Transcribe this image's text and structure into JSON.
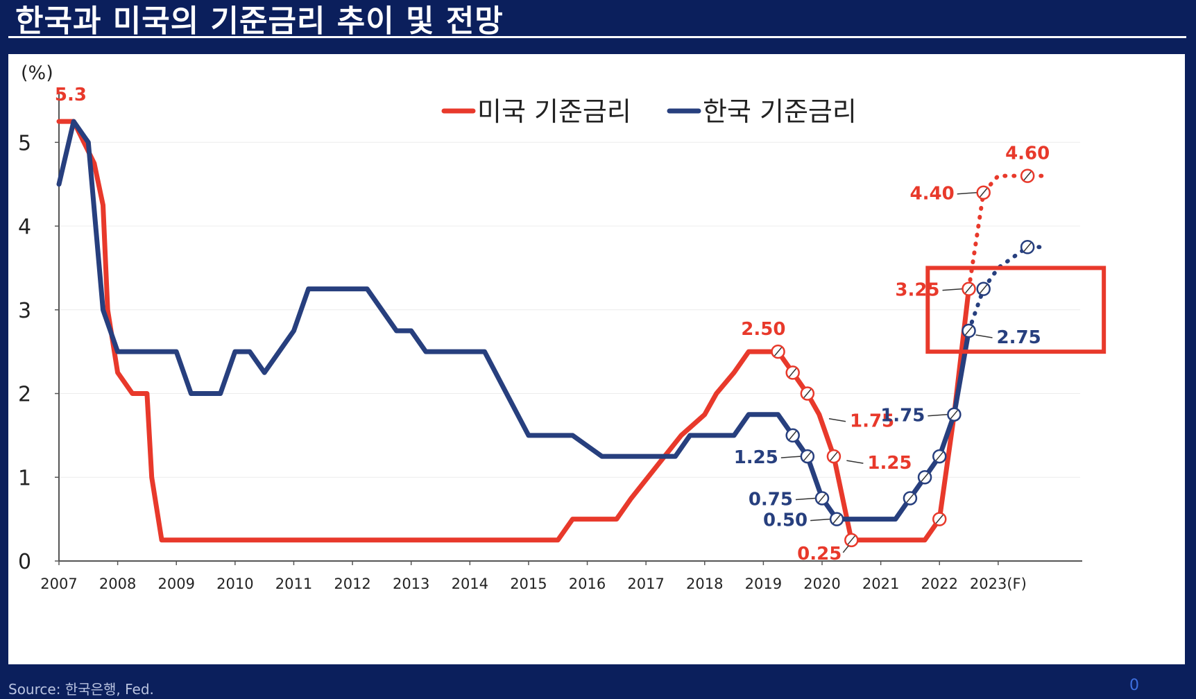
{
  "title": "한국과 미국의 기준금리 추이 및 전망",
  "source": "Source: 한국은행, Fed.",
  "page_number": "0",
  "colors": {
    "us": "#e8392b",
    "korea": "#273f7e",
    "highlight": "#e8392b",
    "background": "#0b1f5c"
  },
  "chart_data": {
    "type": "line",
    "unit_label": "(%)",
    "ylim": [
      0,
      5.4
    ],
    "xlim": [
      2007,
      2023.9
    ],
    "y_ticks": [
      "0",
      "1",
      "2",
      "3",
      "4",
      "5"
    ],
    "x_tick_labels": [
      "2007",
      "2008",
      "2009",
      "2010",
      "2011",
      "2012",
      "2013",
      "2014",
      "2015",
      "2016",
      "2017",
      "2018",
      "2019",
      "2020",
      "2021",
      "2022",
      "2023(F)"
    ],
    "grid": true,
    "legend_placement": "top",
    "series": [
      {
        "name": "미국 기준금리",
        "key": "us",
        "actual": [
          [
            2007.0,
            5.25
          ],
          [
            2007.25,
            5.25
          ],
          [
            2007.6,
            4.75
          ],
          [
            2007.75,
            4.25
          ],
          [
            2007.83,
            3.0
          ],
          [
            2008.0,
            2.25
          ],
          [
            2008.25,
            2.0
          ],
          [
            2008.5,
            2.0
          ],
          [
            2008.58,
            1.0
          ],
          [
            2008.75,
            0.25
          ],
          [
            2015.5,
            0.25
          ],
          [
            2015.75,
            0.5
          ],
          [
            2016.5,
            0.5
          ],
          [
            2016.75,
            0.75
          ],
          [
            2017.6,
            1.5
          ],
          [
            2018.0,
            1.75
          ],
          [
            2018.2,
            2.0
          ],
          [
            2018.5,
            2.25
          ],
          [
            2018.75,
            2.5
          ],
          [
            2019.25,
            2.5
          ],
          [
            2019.5,
            2.25
          ],
          [
            2019.75,
            2.0
          ],
          [
            2019.95,
            1.75
          ],
          [
            2020.2,
            1.25
          ],
          [
            2020.5,
            0.25
          ],
          [
            2021.75,
            0.25
          ],
          [
            2022.0,
            0.5
          ],
          [
            2022.25,
            1.75
          ],
          [
            2022.5,
            3.25
          ]
        ],
        "forecast": [
          [
            2022.5,
            3.25
          ],
          [
            2022.75,
            4.4
          ],
          [
            2023.0,
            4.6
          ],
          [
            2023.75,
            4.6
          ]
        ],
        "markers": [
          2019.25,
          2019.5,
          2019.75,
          2020.2,
          2020.5,
          2022.0,
          2022.5,
          2022.75,
          2023.5
        ],
        "labels": [
          {
            "text": "5.3",
            "x": 2007.2,
            "y": 5.3,
            "pos": "above"
          },
          {
            "text": "2.50",
            "x": 2019.0,
            "y": 2.5,
            "pos": "above"
          },
          {
            "text": "1.75",
            "x": 2020.0,
            "y": 1.75,
            "pos": "right"
          },
          {
            "text": "1.25",
            "x": 2020.3,
            "y": 1.25,
            "pos": "right"
          },
          {
            "text": "0.25",
            "x": 2020.5,
            "y": 0.25,
            "pos": "left-low"
          },
          {
            "text": "3.25",
            "x": 2022.5,
            "y": 3.25,
            "pos": "left"
          },
          {
            "text": "4.40",
            "x": 2022.75,
            "y": 4.4,
            "pos": "left"
          },
          {
            "text": "4.60",
            "x": 2023.5,
            "y": 4.6,
            "pos": "above"
          }
        ]
      },
      {
        "name": "한국 기준금리",
        "key": "korea",
        "actual": [
          [
            2007.0,
            4.5
          ],
          [
            2007.25,
            5.25
          ],
          [
            2007.5,
            5.0
          ],
          [
            2007.75,
            3.0
          ],
          [
            2008.0,
            2.5
          ],
          [
            2009.0,
            2.5
          ],
          [
            2009.25,
            2.0
          ],
          [
            2009.75,
            2.0
          ],
          [
            2010.0,
            2.5
          ],
          [
            2010.25,
            2.5
          ],
          [
            2010.5,
            2.25
          ],
          [
            2011.0,
            2.75
          ],
          [
            2011.25,
            3.25
          ],
          [
            2012.25,
            3.25
          ],
          [
            2012.75,
            2.75
          ],
          [
            2013.0,
            2.75
          ],
          [
            2013.25,
            2.5
          ],
          [
            2014.25,
            2.5
          ],
          [
            2015.0,
            1.5
          ],
          [
            2015.75,
            1.5
          ],
          [
            2016.25,
            1.25
          ],
          [
            2017.5,
            1.25
          ],
          [
            2017.75,
            1.5
          ],
          [
            2018.5,
            1.5
          ],
          [
            2018.75,
            1.75
          ],
          [
            2019.25,
            1.75
          ],
          [
            2019.5,
            1.5
          ],
          [
            2019.75,
            1.25
          ],
          [
            2020.0,
            0.75
          ],
          [
            2020.25,
            0.5
          ],
          [
            2021.25,
            0.5
          ],
          [
            2021.5,
            0.75
          ],
          [
            2021.75,
            1.0
          ],
          [
            2022.0,
            1.25
          ],
          [
            2022.25,
            1.75
          ],
          [
            2022.5,
            2.75
          ]
        ],
        "forecast": [
          [
            2022.5,
            2.75
          ],
          [
            2022.75,
            3.25
          ],
          [
            2023.0,
            3.5
          ],
          [
            2023.5,
            3.75
          ],
          [
            2023.75,
            3.75
          ]
        ],
        "markers": [
          2019.5,
          2019.75,
          2020.0,
          2020.25,
          2021.5,
          2021.75,
          2022.0,
          2022.25,
          2022.5,
          2022.75,
          2023.5
        ],
        "labels": [
          {
            "text": "1.25",
            "x": 2019.75,
            "y": 1.25,
            "pos": "left"
          },
          {
            "text": "0.75",
            "x": 2020.0,
            "y": 0.75,
            "pos": "left"
          },
          {
            "text": "0.50",
            "x": 2020.25,
            "y": 0.5,
            "pos": "left"
          },
          {
            "text": "1.75",
            "x": 2022.25,
            "y": 1.75,
            "pos": "left"
          },
          {
            "text": "2.75",
            "x": 2022.5,
            "y": 2.75,
            "pos": "right"
          }
        ]
      }
    ],
    "highlight_box": {
      "x0": 2021.8,
      "x1": 2024.8,
      "y0": 2.5,
      "y1": 3.5
    }
  }
}
